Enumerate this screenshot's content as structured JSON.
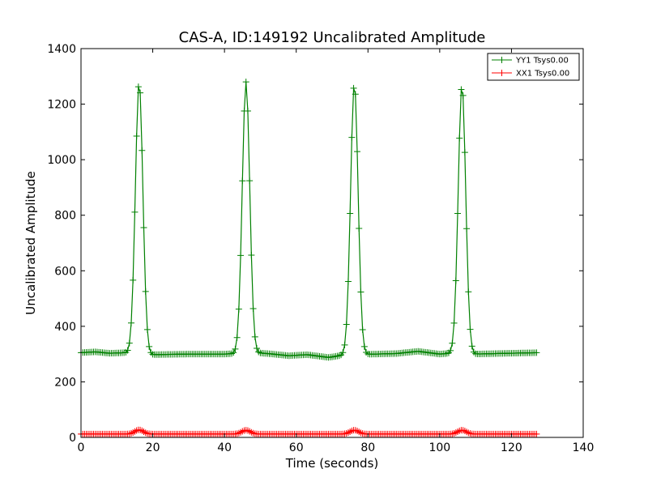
{
  "chart_data": {
    "type": "line",
    "title": "CAS-A, ID:149192 Uncalibrated Amplitude",
    "xlabel": "Time (seconds)",
    "ylabel": "Uncalibrated Amplitude",
    "xlim": [
      0,
      140
    ],
    "ylim": [
      0,
      1400
    ],
    "xticks": [
      0,
      20,
      40,
      60,
      80,
      100,
      120,
      140
    ],
    "yticks": [
      0,
      200,
      400,
      600,
      800,
      1000,
      1200,
      1400
    ],
    "x_tick_labels": [
      "0",
      "20",
      "40",
      "60",
      "80",
      "100",
      "120",
      "140"
    ],
    "y_tick_labels": [
      "0",
      "200",
      "400",
      "600",
      "800",
      "1000",
      "1200",
      "1400"
    ],
    "grid": false,
    "legend_position": "top-right",
    "series": [
      {
        "name": "YY1 Tsys0.00",
        "color": "#008000",
        "marker": "plus",
        "x_start": 0,
        "x_end": 127,
        "x_step": 0.5,
        "baseline": [
          {
            "x": 0,
            "y": 305
          },
          {
            "x": 4,
            "y": 308
          },
          {
            "x": 8,
            "y": 303
          },
          {
            "x": 12,
            "y": 305
          },
          {
            "x": 20,
            "y": 298
          },
          {
            "x": 30,
            "y": 300
          },
          {
            "x": 40,
            "y": 300
          },
          {
            "x": 48,
            "y": 305
          },
          {
            "x": 52,
            "y": 302
          },
          {
            "x": 58,
            "y": 294
          },
          {
            "x": 63,
            "y": 298
          },
          {
            "x": 69,
            "y": 288
          },
          {
            "x": 74,
            "y": 298
          },
          {
            "x": 82,
            "y": 300
          },
          {
            "x": 88,
            "y": 302
          },
          {
            "x": 94,
            "y": 310
          },
          {
            "x": 100,
            "y": 300
          },
          {
            "x": 104,
            "y": 304
          },
          {
            "x": 110,
            "y": 300
          },
          {
            "x": 116,
            "y": 302
          },
          {
            "x": 127,
            "y": 305
          }
        ],
        "peaks": [
          {
            "center": 16.2,
            "amplitude": 1280,
            "width": 1.05
          },
          {
            "center": 46.0,
            "amplitude": 1280,
            "width": 1.05
          },
          {
            "center": 76.2,
            "amplitude": 1275,
            "width": 1.05
          },
          {
            "center": 106.2,
            "amplitude": 1270,
            "width": 1.05
          }
        ]
      },
      {
        "name": "XX1 Tsys0.00",
        "color": "#ff0000",
        "marker": "plus",
        "x_start": 0,
        "x_end": 127,
        "x_step": 0.5,
        "baseline": [
          {
            "x": 0,
            "y": 12
          },
          {
            "x": 127,
            "y": 12
          }
        ],
        "peaks": [
          {
            "center": 16.2,
            "amplitude": 27,
            "width": 1.2
          },
          {
            "center": 46.0,
            "amplitude": 26,
            "width": 1.2
          },
          {
            "center": 76.2,
            "amplitude": 26,
            "width": 1.2
          },
          {
            "center": 106.2,
            "amplitude": 26,
            "width": 1.2
          }
        ]
      }
    ]
  }
}
